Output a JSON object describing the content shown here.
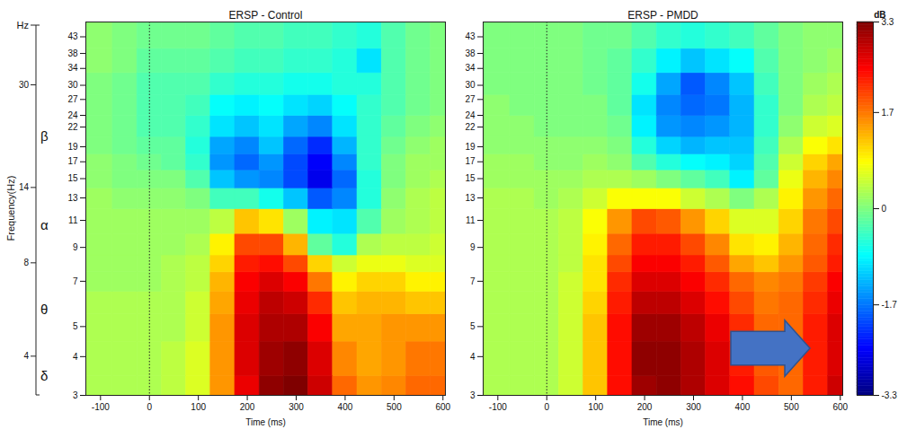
{
  "chart_data": [
    {
      "type": "heatmap",
      "title": "ERSP - Control",
      "xlabel": "Time (ms)",
      "ylabel": "Frequency(Hz)",
      "log": "y",
      "xlim": [
        -130,
        605
      ],
      "xticks": [
        -100,
        0,
        100,
        200,
        300,
        400,
        500,
        600
      ],
      "ylim": [
        3,
        48
      ],
      "yticks": [
        3,
        4,
        5,
        7,
        9,
        11,
        13,
        15,
        17,
        19,
        22,
        24,
        27,
        30,
        34,
        38,
        43
      ],
      "event_time": 0,
      "band_axis": {
        "label": "Hz",
        "ticks": [
          4,
          8,
          14,
          30
        ],
        "bands": [
          {
            "label": "δ",
            "from": 3,
            "to": 4
          },
          {
            "label": "θ",
            "from": 4,
            "to": 8
          },
          {
            "label": "α",
            "from": 8,
            "to": 14
          },
          {
            "label": "β",
            "from": 14,
            "to": 30
          }
        ]
      },
      "x": [
        -100,
        -50,
        0,
        50,
        100,
        150,
        200,
        250,
        300,
        350,
        400,
        450,
        500,
        550,
        600
      ],
      "y": [
        3,
        4,
        5,
        6,
        7,
        8,
        9,
        11,
        13,
        15,
        17,
        19,
        22,
        26,
        30,
        36,
        43
      ],
      "z": [
        [
          0.3,
          0.3,
          0.3,
          0.4,
          0.6,
          1.5,
          2.6,
          3.2,
          3.3,
          2.8,
          1.8,
          1.5,
          1.6,
          1.8,
          1.8
        ],
        [
          0.3,
          0.3,
          0.3,
          0.4,
          0.6,
          1.5,
          2.7,
          3.1,
          3.2,
          2.7,
          1.6,
          1.4,
          1.5,
          1.7,
          1.7
        ],
        [
          0.3,
          0.3,
          0.3,
          0.3,
          0.5,
          1.5,
          2.7,
          3.0,
          3.0,
          2.5,
          1.4,
          1.4,
          1.5,
          1.5,
          1.5
        ],
        [
          0.3,
          0.3,
          0.3,
          0.3,
          0.5,
          1.4,
          2.6,
          2.9,
          2.8,
          2.2,
          1.2,
          1.3,
          1.3,
          1.2,
          1.2
        ],
        [
          0.2,
          0.2,
          0.2,
          0.3,
          0.4,
          1.3,
          2.5,
          2.7,
          2.5,
          1.7,
          0.9,
          1.1,
          1.1,
          0.9,
          0.9
        ],
        [
          0.2,
          0.2,
          0.2,
          0.3,
          0.4,
          1.1,
          2.3,
          2.4,
          2.0,
          1.1,
          0.5,
          0.7,
          0.7,
          0.6,
          0.6
        ],
        [
          0.2,
          0.2,
          0.2,
          0.2,
          0.3,
          0.9,
          2.0,
          2.0,
          1.3,
          -0.2,
          -0.6,
          0.3,
          0.4,
          0.4,
          0.5
        ],
        [
          0.2,
          0.2,
          0.2,
          0.2,
          0.2,
          0.4,
          1.2,
          1.0,
          0.2,
          -0.9,
          -1.0,
          -0.3,
          0.2,
          0.3,
          0.4
        ],
        [
          0.2,
          0.1,
          0.1,
          0.1,
          0.0,
          -0.4,
          -0.4,
          -0.7,
          -1.2,
          -1.9,
          -1.6,
          -0.6,
          0.1,
          0.3,
          0.4
        ],
        [
          0.1,
          0.0,
          0.0,
          0.0,
          -0.3,
          -1.2,
          -1.5,
          -1.6,
          -2.0,
          -2.6,
          -1.8,
          -0.6,
          0.0,
          0.2,
          0.3
        ],
        [
          0.1,
          0.0,
          -0.1,
          -0.2,
          -0.5,
          -1.5,
          -1.8,
          -1.5,
          -2.0,
          -2.5,
          -1.6,
          -0.5,
          0.0,
          0.2,
          0.2
        ],
        [
          0.0,
          -0.1,
          -0.2,
          -0.2,
          -0.6,
          -1.4,
          -1.6,
          -1.2,
          -1.8,
          -2.2,
          -1.3,
          -0.5,
          -0.1,
          0.1,
          0.2
        ],
        [
          0.0,
          -0.1,
          -0.3,
          -0.3,
          -0.5,
          -1.0,
          -1.2,
          -1.0,
          -1.4,
          -1.6,
          -1.0,
          -0.5,
          -0.2,
          0.0,
          0.1
        ],
        [
          0.0,
          -0.1,
          -0.3,
          -0.3,
          -0.4,
          -0.8,
          -0.9,
          -0.8,
          -1.0,
          -1.1,
          -0.8,
          -0.5,
          -0.3,
          -0.1,
          0.0
        ],
        [
          0.0,
          -0.1,
          -0.3,
          -0.3,
          -0.3,
          -0.5,
          -0.6,
          -0.6,
          -0.7,
          -0.7,
          -0.6,
          -0.6,
          -0.3,
          -0.1,
          0.0
        ],
        [
          0.1,
          0.0,
          -0.2,
          -0.2,
          -0.2,
          -0.3,
          -0.4,
          -0.4,
          -0.5,
          -0.5,
          -0.6,
          -1.0,
          -0.3,
          -0.1,
          0.0
        ],
        [
          0.1,
          0.0,
          -0.1,
          -0.1,
          -0.1,
          -0.2,
          -0.3,
          -0.3,
          -0.4,
          -0.4,
          -0.5,
          -0.6,
          -0.3,
          -0.1,
          0.0
        ]
      ]
    },
    {
      "type": "heatmap",
      "title": "ERSP - PMDD",
      "xlabel": "Time (ms)",
      "log": "y",
      "xlim": [
        -130,
        605
      ],
      "xticks": [
        -100,
        0,
        100,
        200,
        300,
        400,
        500,
        600
      ],
      "ylim": [
        3,
        48
      ],
      "yticks": [
        3,
        4,
        5,
        7,
        9,
        11,
        13,
        15,
        17,
        19,
        22,
        24,
        27,
        30,
        34,
        38,
        43
      ],
      "event_time": 0,
      "colorbar": {
        "label": "dB",
        "lim": [
          -3.3,
          3.3
        ],
        "ticks": [
          3.3,
          1.7,
          0,
          -1.7,
          -3.3
        ]
      },
      "x": [
        -100,
        -50,
        0,
        50,
        100,
        150,
        200,
        250,
        300,
        350,
        400,
        450,
        500,
        550,
        600
      ],
      "y": [
        3,
        4,
        5,
        6,
        7,
        8,
        9,
        11,
        13,
        15,
        17,
        19,
        22,
        26,
        30,
        36,
        43
      ],
      "z": [
        [
          0.3,
          0.3,
          0.3,
          0.5,
          1.2,
          2.4,
          3.1,
          3.2,
          3.0,
          2.7,
          2.4,
          2.0,
          1.8,
          2.3,
          2.8
        ],
        [
          0.3,
          0.3,
          0.3,
          0.5,
          1.2,
          2.4,
          3.2,
          3.2,
          3.0,
          2.7,
          2.3,
          1.9,
          1.8,
          2.3,
          2.7
        ],
        [
          0.3,
          0.3,
          0.3,
          0.5,
          1.2,
          2.4,
          3.1,
          3.1,
          2.9,
          2.6,
          2.2,
          1.8,
          1.8,
          2.3,
          2.7
        ],
        [
          0.3,
          0.3,
          0.3,
          0.5,
          1.1,
          2.3,
          2.9,
          2.9,
          2.7,
          2.4,
          2.0,
          1.7,
          1.8,
          2.2,
          2.6
        ],
        [
          0.3,
          0.3,
          0.3,
          0.5,
          1.0,
          2.2,
          2.7,
          2.7,
          2.5,
          2.2,
          1.8,
          1.6,
          1.7,
          2.1,
          2.5
        ],
        [
          0.3,
          0.3,
          0.3,
          0.4,
          1.0,
          2.0,
          2.5,
          2.5,
          2.3,
          1.9,
          1.4,
          1.2,
          1.5,
          1.9,
          2.3
        ],
        [
          0.3,
          0.3,
          0.3,
          0.4,
          0.9,
          1.8,
          2.3,
          2.3,
          2.0,
          1.6,
          1.0,
          0.9,
          1.3,
          1.8,
          2.2
        ],
        [
          0.3,
          0.3,
          0.3,
          0.4,
          0.8,
          1.5,
          2.0,
          1.9,
          1.5,
          1.1,
          0.6,
          0.6,
          1.1,
          1.7,
          2.0
        ],
        [
          0.3,
          0.3,
          0.2,
          0.3,
          0.5,
          0.8,
          0.8,
          0.8,
          0.5,
          0.3,
          0.0,
          0.3,
          0.9,
          1.5,
          1.8
        ],
        [
          0.2,
          0.2,
          0.2,
          0.2,
          0.3,
          0.3,
          0.2,
          0.0,
          -0.2,
          -0.4,
          -0.9,
          -0.2,
          0.7,
          1.3,
          1.6
        ],
        [
          0.2,
          0.2,
          0.1,
          0.1,
          0.2,
          0.1,
          -0.3,
          -0.6,
          -0.8,
          -0.9,
          -1.1,
          -0.3,
          0.5,
          1.1,
          1.4
        ],
        [
          0.1,
          0.1,
          0.1,
          0.1,
          0.1,
          0.0,
          -0.6,
          -1.1,
          -1.3,
          -1.2,
          -1.2,
          -0.4,
          0.3,
          0.8,
          1.0
        ],
        [
          0.1,
          0.1,
          0.0,
          0.0,
          0.0,
          -0.1,
          -0.9,
          -1.5,
          -1.6,
          -1.5,
          -1.3,
          -0.5,
          0.1,
          0.5,
          0.6
        ],
        [
          0.1,
          0.0,
          0.0,
          0.0,
          0.0,
          -0.2,
          -1.0,
          -1.6,
          -1.8,
          -1.7,
          -1.3,
          -0.5,
          0.0,
          0.3,
          0.4
        ],
        [
          0.0,
          0.0,
          0.0,
          0.0,
          -0.1,
          -0.2,
          -0.7,
          -1.4,
          -1.9,
          -1.6,
          -1.2,
          -0.4,
          0.0,
          0.2,
          0.3
        ],
        [
          0.0,
          0.0,
          0.0,
          0.0,
          -0.1,
          -0.2,
          -0.5,
          -0.9,
          -1.2,
          -1.0,
          -0.8,
          -0.3,
          0.0,
          0.1,
          0.2
        ],
        [
          0.0,
          0.0,
          0.0,
          0.0,
          -0.1,
          -0.1,
          -0.3,
          -0.5,
          -0.6,
          -0.5,
          -0.4,
          -0.2,
          0.0,
          0.1,
          0.1
        ]
      ]
    }
  ]
}
